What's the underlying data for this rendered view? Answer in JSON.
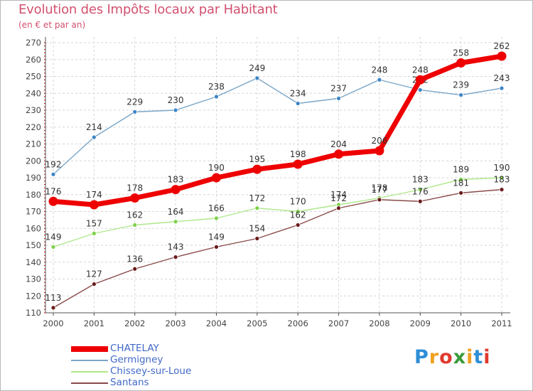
{
  "title": "Evolution des Impôts locaux par Habitant",
  "subtitle": "(en € et par an)",
  "logo_text": "Proxiti",
  "logo_colors": [
    "#2e8fd6",
    "#f0a020",
    "#e03a2e",
    "#3a9a3a",
    "#f0a020",
    "#2e8fd6",
    "#e03a2e"
  ],
  "chart_data": {
    "type": "line",
    "title": "Evolution des Impôts locaux par Habitant",
    "subtitle": "(en € et par an)",
    "x": [
      "2000",
      "2001",
      "2002",
      "2003",
      "2004",
      "2005",
      "2006",
      "2007",
      "2008",
      "2009",
      "2010",
      "2011"
    ],
    "ylim": [
      110,
      270
    ],
    "yticks": [
      110,
      120,
      130,
      140,
      150,
      160,
      170,
      180,
      190,
      200,
      210,
      220,
      230,
      240,
      250,
      260,
      270
    ],
    "grid": true,
    "legend_position": "bottom-left",
    "series": [
      {
        "name": "CHATELAY",
        "color": "#ee0000",
        "emphasis": true,
        "values": [
          176,
          174,
          178,
          183,
          190,
          195,
          198,
          204,
          206,
          248,
          258,
          262
        ]
      },
      {
        "name": "Germigney",
        "color": "#7aa6c8",
        "point_color": "#3c86c6",
        "values": [
          192,
          214,
          229,
          230,
          238,
          249,
          234,
          237,
          248,
          242,
          239,
          243
        ]
      },
      {
        "name": "Chissey-sur-Loue",
        "color": "#aee88a",
        "point_color": "#7ed04a",
        "values": [
          149,
          157,
          162,
          164,
          166,
          172,
          170,
          174,
          178,
          183,
          189,
          190
        ]
      },
      {
        "name": "Santans",
        "color": "#8a4a4a",
        "point_color": "#6a1a1a",
        "values": [
          113,
          127,
          136,
          143,
          149,
          154,
          162,
          172,
          177,
          176,
          181,
          183
        ]
      }
    ]
  }
}
